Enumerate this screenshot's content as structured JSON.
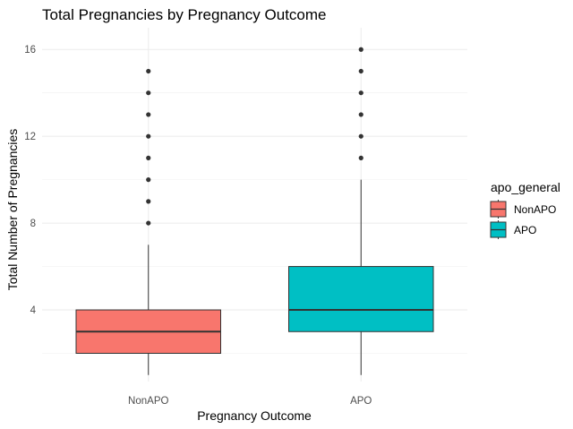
{
  "chart_data": {
    "type": "boxplot",
    "title": "Total Pregnancies by Pregnancy Outcome",
    "xlabel": "Pregnancy Outcome",
    "ylabel": "Total Number of Pregnancies",
    "ylim": [
      0.7,
      17
    ],
    "yticks": [
      4,
      8,
      12,
      16
    ],
    "categories": [
      "NonAPO",
      "APO"
    ],
    "series": [
      {
        "category": "NonAPO",
        "color": "#F8766D",
        "min": 1,
        "q1": 2,
        "median": 3,
        "q3": 4,
        "max": 7,
        "outliers": [
          8,
          9,
          10,
          11,
          12,
          13,
          14,
          15
        ]
      },
      {
        "category": "APO",
        "color": "#00BFC4",
        "min": 1,
        "q1": 3,
        "median": 4,
        "q3": 6,
        "max": 10,
        "outliers": [
          11,
          12,
          13,
          14,
          15,
          16
        ]
      }
    ],
    "grid": true,
    "legend": {
      "title": "apo_general",
      "position": "right",
      "entries": [
        {
          "label": "NonAPO",
          "color": "#F8766D"
        },
        {
          "label": "APO",
          "color": "#00BFC4"
        }
      ]
    }
  }
}
